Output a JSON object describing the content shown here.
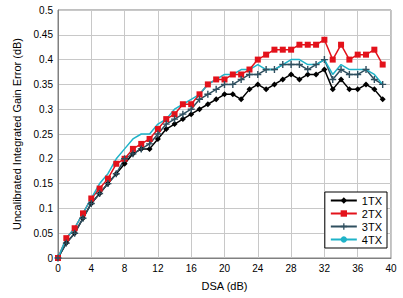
{
  "chart_data": {
    "type": "line",
    "x_label": "DSA (dB)",
    "y_label": "Uncalibrated Integrated Gain Error (dB)",
    "x": [
      0,
      1,
      2,
      3,
      4,
      5,
      6,
      7,
      8,
      9,
      10,
      11,
      12,
      13,
      14,
      15,
      16,
      17,
      18,
      19,
      20,
      21,
      22,
      23,
      24,
      25,
      26,
      27,
      28,
      29,
      30,
      31,
      32,
      33,
      34,
      35,
      36,
      37,
      38,
      39
    ],
    "series": [
      {
        "name": "1TX",
        "color": "#000000",
        "marker": "diamond",
        "values": [
          0,
          0.03,
          0.05,
          0.08,
          0.11,
          0.13,
          0.15,
          0.17,
          0.19,
          0.21,
          0.22,
          0.22,
          0.24,
          0.26,
          0.27,
          0.28,
          0.29,
          0.3,
          0.31,
          0.32,
          0.33,
          0.33,
          0.32,
          0.34,
          0.35,
          0.34,
          0.35,
          0.36,
          0.37,
          0.36,
          0.37,
          0.37,
          0.38,
          0.34,
          0.36,
          0.34,
          0.34,
          0.35,
          0.34,
          0.32
        ]
      },
      {
        "name": "2TX",
        "color": "#e3121b",
        "marker": "square",
        "values": [
          0,
          0.04,
          0.06,
          0.09,
          0.12,
          0.14,
          0.16,
          0.19,
          0.2,
          0.22,
          0.23,
          0.24,
          0.26,
          0.28,
          0.29,
          0.31,
          0.31,
          0.33,
          0.35,
          0.36,
          0.36,
          0.37,
          0.37,
          0.38,
          0.4,
          0.41,
          0.42,
          0.42,
          0.42,
          0.43,
          0.43,
          0.43,
          0.44,
          0.4,
          0.43,
          0.4,
          0.41,
          0.41,
          0.42,
          0.39
        ]
      },
      {
        "name": "3TX",
        "color": "#2f4f5f",
        "marker": "plus",
        "values": [
          0,
          0.03,
          0.05,
          0.08,
          0.11,
          0.13,
          0.15,
          0.17,
          0.2,
          0.21,
          0.22,
          0.23,
          0.25,
          0.27,
          0.28,
          0.29,
          0.3,
          0.32,
          0.33,
          0.34,
          0.35,
          0.35,
          0.36,
          0.37,
          0.37,
          0.38,
          0.38,
          0.39,
          0.39,
          0.39,
          0.38,
          0.39,
          0.4,
          0.36,
          0.38,
          0.37,
          0.37,
          0.38,
          0.36,
          0.35
        ]
      },
      {
        "name": "4TX",
        "color": "#1fb3c8",
        "marker": "none",
        "values": [
          0,
          0.04,
          0.06,
          0.09,
          0.12,
          0.15,
          0.17,
          0.2,
          0.22,
          0.24,
          0.25,
          0.25,
          0.27,
          0.28,
          0.3,
          0.31,
          0.32,
          0.33,
          0.35,
          0.36,
          0.37,
          0.37,
          0.38,
          0.38,
          0.39,
          0.38,
          0.38,
          0.39,
          0.4,
          0.4,
          0.39,
          0.39,
          0.4,
          0.37,
          0.39,
          0.38,
          0.38,
          0.38,
          0.37,
          0.35
        ]
      }
    ],
    "xlim": [
      0,
      40
    ],
    "xticks": [
      0,
      4,
      8,
      12,
      16,
      20,
      24,
      28,
      32,
      36,
      40
    ],
    "ylim": [
      0,
      0.5
    ],
    "yticks": [
      0,
      0.05,
      0.1,
      0.15,
      0.2,
      0.25,
      0.3,
      0.35,
      0.4,
      0.45,
      0.5
    ],
    "grid": true,
    "legend": "lower right"
  }
}
